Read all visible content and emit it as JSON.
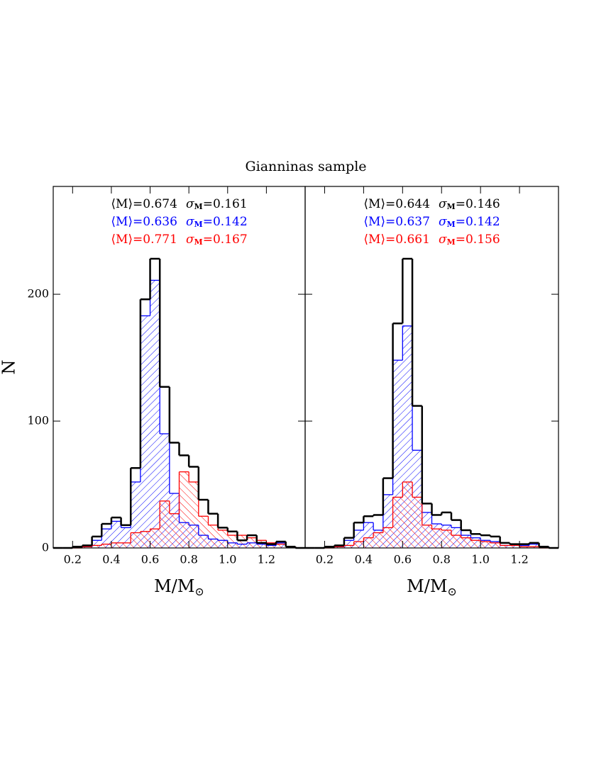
{
  "title": "Gianninas sample",
  "chart_data": [
    {
      "type": "histogram",
      "ylabel": "N",
      "xlabel": [
        "M/M",
        "⊙"
      ],
      "bins": [
        0.1,
        0.15,
        0.2,
        0.25,
        0.3,
        0.35,
        0.4,
        0.45,
        0.5,
        0.55,
        0.6,
        0.65,
        0.7,
        0.75,
        0.8,
        0.85,
        0.9,
        0.95,
        1.0,
        1.05,
        1.1,
        1.15,
        1.2,
        1.25,
        1.3,
        1.35,
        1.4
      ],
      "xlim": [
        0.1,
        1.4
      ],
      "ylim": [
        0,
        285
      ],
      "xticks": [
        0.2,
        0.4,
        0.6,
        0.8,
        {
          "value": 1.0,
          "label": "1.0"
        },
        1.2
      ],
      "yticks": [
        0,
        100,
        200
      ],
      "ytick_labels": true,
      "series": [
        {
          "color": "#0000ff",
          "hatch": "/",
          "annotation": [
            "⟨M⟩=0.636",
            "σ",
            "M",
            "=0.142"
          ],
          "values": [
            0,
            0,
            1,
            1,
            6,
            15,
            21,
            16,
            52,
            183,
            211,
            90,
            43,
            20,
            18,
            10,
            7,
            6,
            4,
            3,
            4,
            3,
            2,
            4,
            1,
            0
          ]
        },
        {
          "color": "#ff0000",
          "hatch": "\\",
          "annotation": [
            "⟨M⟩=0.771",
            "σ",
            "M",
            "=0.167"
          ],
          "values": [
            0,
            0,
            0,
            1,
            2,
            3,
            4,
            4,
            12,
            13,
            15,
            37,
            27,
            60,
            52,
            25,
            18,
            14,
            10,
            10,
            8,
            6,
            4,
            3,
            1,
            0
          ]
        },
        {
          "color": "#000000",
          "hatch": null,
          "annotation": [
            "⟨M⟩=0.674",
            "σ",
            "M",
            "=0.161"
          ],
          "values": [
            0,
            0,
            1,
            2,
            9,
            19,
            24,
            18,
            63,
            196,
            228,
            127,
            83,
            73,
            64,
            38,
            27,
            16,
            13,
            6,
            10,
            4,
            3,
            5,
            1,
            0
          ]
        }
      ]
    },
    {
      "type": "histogram",
      "xlabel": [
        "M/M",
        "⊙"
      ],
      "bins": [
        0.1,
        0.15,
        0.2,
        0.25,
        0.3,
        0.35,
        0.4,
        0.45,
        0.5,
        0.55,
        0.6,
        0.65,
        0.7,
        0.75,
        0.8,
        0.85,
        0.9,
        0.95,
        1.0,
        1.05,
        1.1,
        1.15,
        1.2,
        1.25,
        1.3,
        1.35,
        1.4
      ],
      "xlim": [
        0.1,
        1.4
      ],
      "ylim": [
        0,
        285
      ],
      "xticks": [
        0.2,
        0.4,
        0.6,
        0.8,
        {
          "value": 1.0,
          "label": "1.0"
        },
        1.2
      ],
      "yticks": [
        0,
        100,
        200
      ],
      "ytick_labels": false,
      "series": [
        {
          "color": "#0000ff",
          "hatch": "/",
          "annotation": [
            "⟨M⟩=0.637",
            "σ",
            "M",
            "=0.142"
          ],
          "values": [
            0,
            0,
            1,
            1,
            6,
            14,
            20,
            14,
            42,
            148,
            175,
            77,
            28,
            19,
            18,
            16,
            10,
            8,
            6,
            5,
            2,
            2,
            2,
            3,
            1,
            0
          ]
        },
        {
          "color": "#ff0000",
          "hatch": "\\",
          "annotation": [
            "⟨M⟩=0.661",
            "σ",
            "M",
            "=0.156"
          ],
          "values": [
            0,
            0,
            0,
            1,
            2,
            5,
            8,
            12,
            16,
            40,
            52,
            40,
            18,
            15,
            14,
            10,
            8,
            6,
            5,
            4,
            2,
            2,
            1,
            1,
            0,
            0
          ]
        },
        {
          "color": "#000000",
          "hatch": null,
          "annotation": [
            "⟨M⟩=0.644",
            "σ",
            "M",
            "=0.146"
          ],
          "values": [
            0,
            0,
            1,
            2,
            8,
            20,
            25,
            26,
            55,
            177,
            228,
            112,
            35,
            26,
            28,
            22,
            14,
            11,
            10,
            9,
            4,
            3,
            3,
            4,
            1,
            0
          ]
        }
      ]
    }
  ]
}
